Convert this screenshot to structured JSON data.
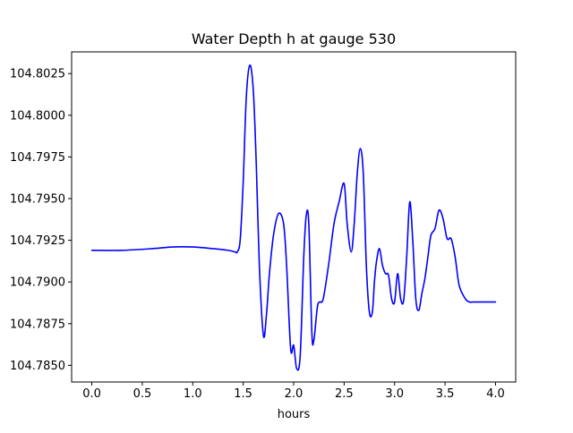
{
  "chart_data": {
    "type": "line",
    "title": "Water Depth h at gauge 530",
    "xlabel": "hours",
    "ylabel": "",
    "xlim": [
      -0.2,
      4.2
    ],
    "ylim": [
      104.784,
      104.8038
    ],
    "xticks": [
      0.0,
      0.5,
      1.0,
      1.5,
      2.0,
      2.5,
      3.0,
      3.5,
      4.0
    ],
    "xtick_labels": [
      "0.0",
      "0.5",
      "1.0",
      "1.5",
      "2.0",
      "2.5",
      "3.0",
      "3.5",
      "4.0"
    ],
    "yticks": [
      104.785,
      104.7875,
      104.79,
      104.7925,
      104.795,
      104.7975,
      104.8,
      104.8025
    ],
    "ytick_labels": [
      "104.7850",
      "104.7875",
      "104.7900",
      "104.7925",
      "104.7950",
      "104.7975",
      "104.8000",
      "104.8025"
    ],
    "grid": false,
    "series": [
      {
        "color": "#0000ff",
        "x": [
          0.0,
          0.3,
          0.6,
          0.8,
          1.0,
          1.2,
          1.35,
          1.42,
          1.44,
          1.47,
          1.5,
          1.53,
          1.565,
          1.6,
          1.63,
          1.66,
          1.7,
          1.73,
          1.76,
          1.8,
          1.85,
          1.9,
          1.93,
          1.97,
          2.0,
          2.03,
          2.065,
          2.1,
          2.125,
          2.15,
          2.18,
          2.2,
          2.235,
          2.26,
          2.28,
          2.3,
          2.35,
          2.4,
          2.45,
          2.5,
          2.53,
          2.57,
          2.6,
          2.63,
          2.66,
          2.69,
          2.72,
          2.75,
          2.78,
          2.8,
          2.82,
          2.85,
          2.88,
          2.91,
          2.94,
          2.97,
          3.0,
          3.03,
          3.06,
          3.09,
          3.12,
          3.15,
          3.18,
          3.21,
          3.24,
          3.27,
          3.3,
          3.33,
          3.36,
          3.4,
          3.44,
          3.48,
          3.52,
          3.56,
          3.6,
          3.64,
          3.7,
          3.74,
          3.78,
          3.82,
          3.86,
          3.9,
          3.95,
          4.0
        ],
        "y": [
          104.7919,
          104.7919,
          104.792,
          104.7921,
          104.7921,
          104.792,
          104.7919,
          104.7918,
          104.7918,
          104.7925,
          104.796,
          104.801,
          104.803,
          104.8015,
          104.797,
          104.791,
          104.7868,
          104.788,
          104.7905,
          104.7928,
          104.7941,
          104.7935,
          104.791,
          104.786,
          104.7862,
          104.7848,
          104.7856,
          104.7915,
          104.794,
          104.7935,
          104.787,
          104.7865,
          104.7885,
          104.7888,
          104.7888,
          104.7892,
          104.7912,
          104.7935,
          104.7948,
          104.7959,
          104.7935,
          104.7918,
          104.7935,
          104.7965,
          104.798,
          104.7965,
          104.791,
          104.7882,
          104.7882,
          104.79,
          104.7912,
          104.792,
          104.791,
          104.7905,
          104.7904,
          104.789,
          104.7888,
          104.7905,
          104.789,
          104.7889,
          104.7915,
          104.7948,
          104.7925,
          104.789,
          104.7883,
          104.7893,
          104.7902,
          104.7915,
          104.7928,
          104.7932,
          104.7943,
          104.7938,
          104.7926,
          104.7926,
          104.7915,
          104.7898,
          104.789,
          104.7888,
          104.7888,
          104.7888,
          104.7888,
          104.7888,
          104.7888,
          104.7888
        ]
      }
    ]
  }
}
